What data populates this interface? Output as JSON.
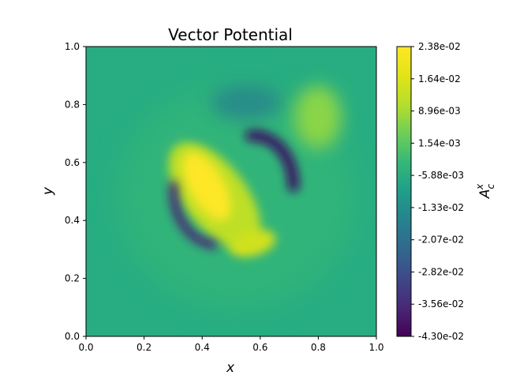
{
  "chart_data": {
    "type": "heatmap",
    "title": "Vector Potential",
    "xlabel": "x",
    "ylabel": "y",
    "xlim": [
      0.0,
      1.0
    ],
    "ylim": [
      0.0,
      1.0
    ],
    "x_ticks": [
      "0.0",
      "0.2",
      "0.4",
      "0.6",
      "0.8",
      "1.0"
    ],
    "y_ticks": [
      "0.0",
      "0.2",
      "0.4",
      "0.6",
      "0.8",
      "1.0"
    ],
    "grid": false,
    "colormap": "viridis",
    "colorbar": {
      "label_main": "A",
      "label_sup": "x",
      "label_sub": "c",
      "min": -0.043,
      "max": 0.0238,
      "tick_labels": [
        "2.38e-02",
        "1.64e-02",
        "8.96e-03",
        "1.54e-03",
        "-5.88e-03",
        "-1.33e-02",
        "-2.07e-02",
        "-2.82e-02",
        "-3.56e-02",
        "-4.30e-02"
      ]
    },
    "field_features": [
      {
        "kind": "positive-lobe",
        "x": 0.42,
        "y": 0.52,
        "value": 0.0238
      },
      {
        "kind": "positive-lobe",
        "x": 0.57,
        "y": 0.32,
        "value": 0.016
      },
      {
        "kind": "positive-lobe",
        "x": 0.79,
        "y": 0.75,
        "value": 0.009
      },
      {
        "kind": "negative-arc",
        "x": 0.67,
        "y": 0.63,
        "value": -0.043
      },
      {
        "kind": "negative-arc",
        "x": 0.33,
        "y": 0.38,
        "value": -0.035
      },
      {
        "kind": "negative-lobe",
        "x": 0.55,
        "y": 0.8,
        "value": -0.009
      }
    ]
  }
}
